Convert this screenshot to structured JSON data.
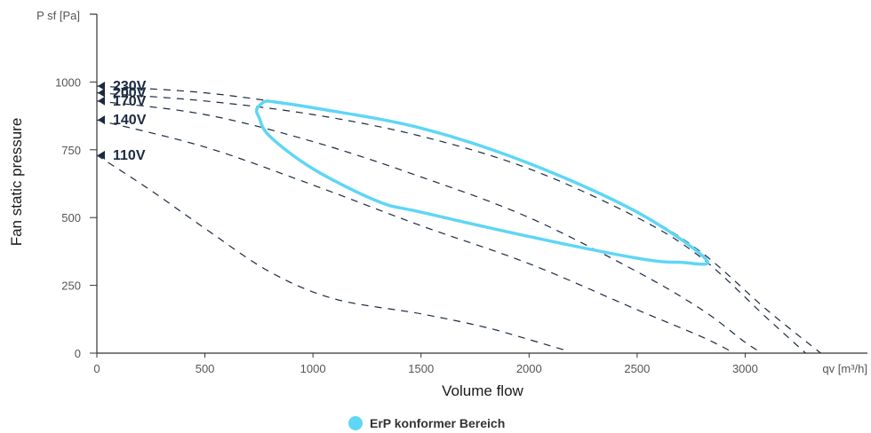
{
  "chart_data": {
    "type": "line",
    "xlabel": "Volume flow",
    "ylabel": "Fan static pressure",
    "x_unit_label": "qv [m³/h]",
    "y_unit_label": "P sf [Pa]",
    "xlim": [
      0,
      3500
    ],
    "ylim": [
      0,
      1250
    ],
    "x_ticks": [
      0,
      500,
      1000,
      1500,
      2000,
      2500,
      3000
    ],
    "y_ticks": [
      0,
      250,
      500,
      750,
      1000
    ],
    "grid": false,
    "legend_position": "bottom-center",
    "colors": {
      "curve": "#1b2a41",
      "region": "#5fd6f5",
      "axis": "#333333"
    },
    "series": [
      {
        "name": "230V",
        "style": "dashed",
        "points": [
          [
            0,
            985
          ],
          [
            500,
            960
          ],
          [
            1000,
            905
          ],
          [
            1500,
            830
          ],
          [
            2000,
            700
          ],
          [
            2500,
            520
          ],
          [
            2800,
            370
          ],
          [
            3100,
            160
          ],
          [
            3350,
            0
          ]
        ]
      },
      {
        "name": "200V",
        "style": "dashed",
        "points": [
          [
            0,
            960
          ],
          [
            500,
            930
          ],
          [
            1000,
            880
          ],
          [
            1500,
            800
          ],
          [
            2000,
            680
          ],
          [
            2500,
            500
          ],
          [
            2800,
            350
          ],
          [
            3100,
            130
          ],
          [
            3280,
            0
          ]
        ]
      },
      {
        "name": "170V",
        "style": "dashed",
        "points": [
          [
            0,
            930
          ],
          [
            500,
            880
          ],
          [
            1000,
            780
          ],
          [
            1500,
            650
          ],
          [
            2000,
            500
          ],
          [
            2500,
            300
          ],
          [
            2800,
            160
          ],
          [
            3000,
            40
          ],
          [
            3080,
            0
          ]
        ]
      },
      {
        "name": "140V",
        "style": "dashed",
        "points": [
          [
            0,
            860
          ],
          [
            500,
            760
          ],
          [
            1000,
            620
          ],
          [
            1500,
            470
          ],
          [
            2000,
            330
          ],
          [
            2500,
            160
          ],
          [
            2800,
            60
          ],
          [
            2950,
            0
          ]
        ]
      },
      {
        "name": "110V",
        "style": "dashed",
        "points": [
          [
            0,
            730
          ],
          [
            250,
            600
          ],
          [
            500,
            460
          ],
          [
            800,
            300
          ],
          [
            1100,
            200
          ],
          [
            1500,
            145
          ],
          [
            1800,
            95
          ],
          [
            2000,
            50
          ],
          [
            2170,
            10
          ]
        ]
      }
    ],
    "voltage_markers": [
      {
        "label": "230V",
        "y": 985
      },
      {
        "label": "200V",
        "y": 960
      },
      {
        "label": "170V",
        "y": 930
      },
      {
        "label": "140V",
        "y": 860
      },
      {
        "label": "110V",
        "y": 730
      }
    ],
    "region": {
      "name": "ErP konformer Bereich",
      "points": [
        [
          790,
          930
        ],
        [
          1000,
          905
        ],
        [
          1500,
          830
        ],
        [
          2000,
          700
        ],
        [
          2500,
          520
        ],
        [
          2820,
          345
        ],
        [
          2700,
          335
        ],
        [
          2500,
          350
        ],
        [
          2000,
          430
        ],
        [
          1500,
          520
        ],
        [
          1300,
          560
        ],
        [
          1000,
          680
        ],
        [
          800,
          800
        ],
        [
          750,
          870
        ],
        [
          740,
          900
        ],
        [
          770,
          925
        ],
        [
          790,
          930
        ]
      ]
    }
  }
}
